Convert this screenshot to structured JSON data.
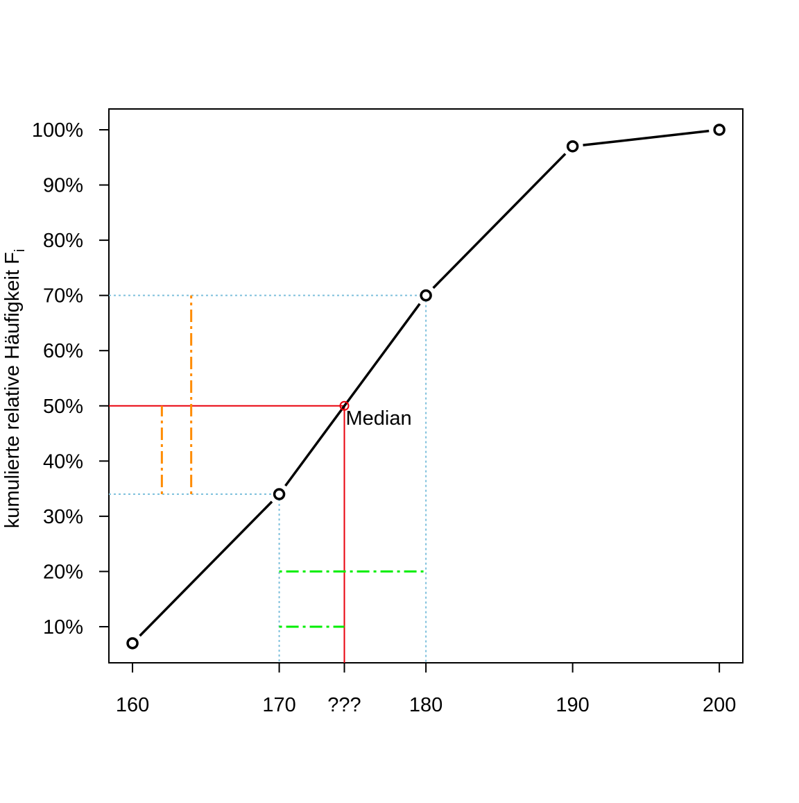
{
  "chart_data": {
    "type": "line",
    "y_label": "kumulierte relative Häufigkeit F",
    "y_label_subscript": "i",
    "x": [
      160,
      170,
      180,
      190,
      200
    ],
    "series": [
      {
        "color": "#000000",
        "values": [
          7,
          34,
          70,
          97,
          100
        ]
      }
    ],
    "xlim": [
      158.39,
      201.6
    ],
    "ylim": [
      3.46,
      103.77
    ],
    "xticks": [
      160,
      170,
      {
        "value": 174.44,
        "label": "???"
      },
      180,
      190,
      200
    ],
    "yticks": [
      {
        "value": 10,
        "label": "10%"
      },
      {
        "value": 20,
        "label": "20%"
      },
      {
        "value": 30,
        "label": "30%"
      },
      {
        "value": 40,
        "label": "40%"
      },
      {
        "value": 50,
        "label": "50%"
      },
      {
        "value": 60,
        "label": "60%"
      },
      {
        "value": 70,
        "label": "70%"
      },
      {
        "value": 80,
        "label": "80%"
      },
      {
        "value": 90,
        "label": "90%"
      },
      {
        "value": 100,
        "label": "100%"
      }
    ],
    "drop_lines": [
      {
        "x": 170,
        "y": 34,
        "color": "#7ec0dc",
        "style": "dotted"
      },
      {
        "x": 180,
        "y": 70,
        "color": "#7ec0dc",
        "style": "dotted"
      },
      {
        "x": 174.44,
        "y": 50,
        "color": "#e8000b",
        "style": "solid"
      }
    ],
    "segments": [
      {
        "x": [
          162,
          162
        ],
        "y": [
          34,
          50
        ],
        "color": "#ff8c00",
        "style": "dashdot"
      },
      {
        "x": [
          164,
          164
        ],
        "y": [
          34,
          70
        ],
        "color": "#ff8c00",
        "style": "dashdot"
      },
      {
        "x": [
          170,
          180
        ],
        "y": [
          20,
          20
        ],
        "color": "#00ee00",
        "style": "dashdot"
      },
      {
        "x": [
          170,
          174.44
        ],
        "y": [
          10,
          10
        ],
        "color": "#00ee00",
        "style": "dashdot"
      }
    ],
    "median": {
      "label": "Median",
      "x": 174.44,
      "y": 50,
      "color": "#e8000b"
    }
  }
}
